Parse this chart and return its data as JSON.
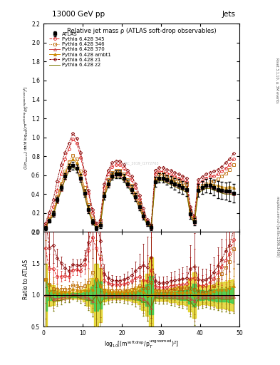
{
  "title_left": "13000 GeV pp",
  "title_right": "Jets",
  "plot_title": "Relative jet mass ρ (ATLAS soft-drop observables)",
  "xlabel": "log$_{10}$[(m$^{\\rm soft\\,drop}$/p$_T^{\\rm ungroomed}$)$^2$]",
  "ylabel_main": "(1/σ$_{\\rm resum}$) dσ/d log$_{10}$[(m$^{\\rm soft\\,drop}$/p$_T^{\\rm ungroomed}$)$^2$]",
  "ylabel_ratio": "Ratio to ATLAS",
  "right_label1": "Rivet 3.1.10, ≥ 3M events",
  "right_label2": "mcplots.cern.ch [arXiv:1306.3436]",
  "watermark": "ARC_2019_I1772763",
  "xmin": 0,
  "xmax": 50,
  "ymin_main": 0,
  "ymax_main": 2.2,
  "ymin_ratio": 0.5,
  "ymax_ratio": 2.0,
  "yticks_main": [
    0,
    0.2,
    0.4,
    0.6,
    0.8,
    1.0,
    1.2,
    1.4,
    1.6,
    1.8,
    2.0,
    2.2
  ],
  "yticks_ratio": [
    0.5,
    1.0,
    1.5,
    2.0
  ],
  "xticks": [
    0,
    10,
    20,
    30,
    40,
    50
  ],
  "x_data": [
    0.5,
    1.5,
    2.5,
    3.5,
    4.5,
    5.5,
    6.5,
    7.5,
    8.5,
    9.5,
    10.5,
    11.5,
    12.5,
    13.5,
    14.5,
    15.5,
    16.5,
    17.5,
    18.5,
    19.5,
    20.5,
    21.5,
    22.5,
    23.5,
    24.5,
    25.5,
    26.5,
    27.5,
    28.5,
    29.5,
    30.5,
    31.5,
    32.5,
    33.5,
    34.5,
    35.5,
    36.5,
    37.5,
    38.5,
    39.5,
    40.5,
    41.5,
    42.5,
    43.5,
    44.5,
    45.5,
    46.5,
    47.5,
    48.5
  ],
  "atlas_y": [
    0.04,
    0.12,
    0.19,
    0.34,
    0.47,
    0.59,
    0.68,
    0.7,
    0.67,
    0.57,
    0.41,
    0.24,
    0.11,
    0.04,
    0.07,
    0.38,
    0.51,
    0.59,
    0.61,
    0.61,
    0.57,
    0.51,
    0.45,
    0.37,
    0.27,
    0.17,
    0.09,
    0.05,
    0.53,
    0.57,
    0.57,
    0.55,
    0.53,
    0.51,
    0.49,
    0.47,
    0.45,
    0.19,
    0.11,
    0.44,
    0.47,
    0.49,
    0.49,
    0.47,
    0.45,
    0.44,
    0.43,
    0.43,
    0.41
  ],
  "atlas_yerr": [
    0.02,
    0.02,
    0.03,
    0.03,
    0.03,
    0.03,
    0.04,
    0.04,
    0.04,
    0.04,
    0.04,
    0.04,
    0.03,
    0.02,
    0.03,
    0.04,
    0.04,
    0.04,
    0.04,
    0.04,
    0.04,
    0.04,
    0.04,
    0.04,
    0.04,
    0.04,
    0.03,
    0.03,
    0.05,
    0.05,
    0.05,
    0.05,
    0.06,
    0.06,
    0.07,
    0.07,
    0.07,
    0.05,
    0.04,
    0.07,
    0.07,
    0.07,
    0.08,
    0.08,
    0.09,
    0.09,
    0.09,
    0.1,
    0.1
  ],
  "p345_y": [
    0.07,
    0.17,
    0.27,
    0.44,
    0.61,
    0.77,
    0.88,
    0.98,
    0.94,
    0.79,
    0.61,
    0.41,
    0.21,
    0.07,
    0.11,
    0.47,
    0.61,
    0.69,
    0.71,
    0.71,
    0.67,
    0.61,
    0.55,
    0.47,
    0.35,
    0.21,
    0.11,
    0.07,
    0.61,
    0.64,
    0.64,
    0.62,
    0.61,
    0.59,
    0.57,
    0.55,
    0.53,
    0.24,
    0.14,
    0.51,
    0.54,
    0.57,
    0.59,
    0.59,
    0.61,
    0.64,
    0.67,
    0.71,
    0.77
  ],
  "p346_y": [
    0.05,
    0.14,
    0.21,
    0.37,
    0.51,
    0.64,
    0.74,
    0.81,
    0.77,
    0.64,
    0.47,
    0.29,
    0.15,
    0.05,
    0.08,
    0.41,
    0.55,
    0.63,
    0.65,
    0.65,
    0.61,
    0.55,
    0.49,
    0.41,
    0.31,
    0.19,
    0.1,
    0.06,
    0.57,
    0.61,
    0.61,
    0.59,
    0.57,
    0.56,
    0.54,
    0.52,
    0.5,
    0.21,
    0.12,
    0.47,
    0.49,
    0.51,
    0.53,
    0.54,
    0.56,
    0.59,
    0.62,
    0.66,
    0.71
  ],
  "p370_y": [
    0.04,
    0.12,
    0.18,
    0.32,
    0.45,
    0.57,
    0.66,
    0.71,
    0.67,
    0.56,
    0.4,
    0.23,
    0.1,
    0.04,
    0.07,
    0.38,
    0.5,
    0.58,
    0.6,
    0.6,
    0.56,
    0.5,
    0.44,
    0.36,
    0.26,
    0.16,
    0.08,
    0.04,
    0.53,
    0.56,
    0.56,
    0.54,
    0.52,
    0.5,
    0.48,
    0.46,
    0.44,
    0.18,
    0.1,
    0.43,
    0.46,
    0.48,
    0.48,
    0.46,
    0.44,
    0.43,
    0.42,
    0.42,
    0.4
  ],
  "pambt1_y": [
    0.05,
    0.13,
    0.2,
    0.35,
    0.49,
    0.62,
    0.71,
    0.77,
    0.73,
    0.61,
    0.44,
    0.26,
    0.12,
    0.05,
    0.08,
    0.4,
    0.53,
    0.61,
    0.63,
    0.63,
    0.59,
    0.53,
    0.47,
    0.39,
    0.29,
    0.18,
    0.09,
    0.05,
    0.55,
    0.58,
    0.58,
    0.56,
    0.55,
    0.53,
    0.51,
    0.49,
    0.47,
    0.2,
    0.11,
    0.45,
    0.48,
    0.5,
    0.51,
    0.5,
    0.49,
    0.48,
    0.47,
    0.48,
    0.47
  ],
  "pz1_y": [
    0.09,
    0.21,
    0.34,
    0.54,
    0.71,
    0.84,
    0.94,
    1.04,
    0.99,
    0.84,
    0.64,
    0.44,
    0.24,
    0.09,
    0.13,
    0.51,
    0.65,
    0.73,
    0.75,
    0.75,
    0.71,
    0.65,
    0.59,
    0.51,
    0.39,
    0.25,
    0.13,
    0.08,
    0.65,
    0.68,
    0.68,
    0.66,
    0.65,
    0.63,
    0.61,
    0.59,
    0.57,
    0.27,
    0.16,
    0.55,
    0.58,
    0.61,
    0.63,
    0.64,
    0.66,
    0.69,
    0.73,
    0.77,
    0.83
  ],
  "pz2_y": [
    0.04,
    0.12,
    0.17,
    0.31,
    0.43,
    0.55,
    0.64,
    0.69,
    0.65,
    0.54,
    0.38,
    0.22,
    0.1,
    0.04,
    0.06,
    0.36,
    0.48,
    0.56,
    0.58,
    0.58,
    0.54,
    0.48,
    0.42,
    0.34,
    0.25,
    0.15,
    0.08,
    0.04,
    0.51,
    0.54,
    0.54,
    0.52,
    0.5,
    0.48,
    0.46,
    0.44,
    0.42,
    0.17,
    0.09,
    0.41,
    0.44,
    0.46,
    0.46,
    0.44,
    0.43,
    0.41,
    0.4,
    0.4,
    0.39
  ],
  "color_atlas": "#000000",
  "color_p345": "#dd2222",
  "color_p346": "#bb6600",
  "color_p370": "#cc4444",
  "color_pambt1": "#cc8800",
  "color_pz1": "#880000",
  "color_pz2": "#777700",
  "color_band_green": "#33cc55",
  "color_band_yellow": "#ddcc00"
}
